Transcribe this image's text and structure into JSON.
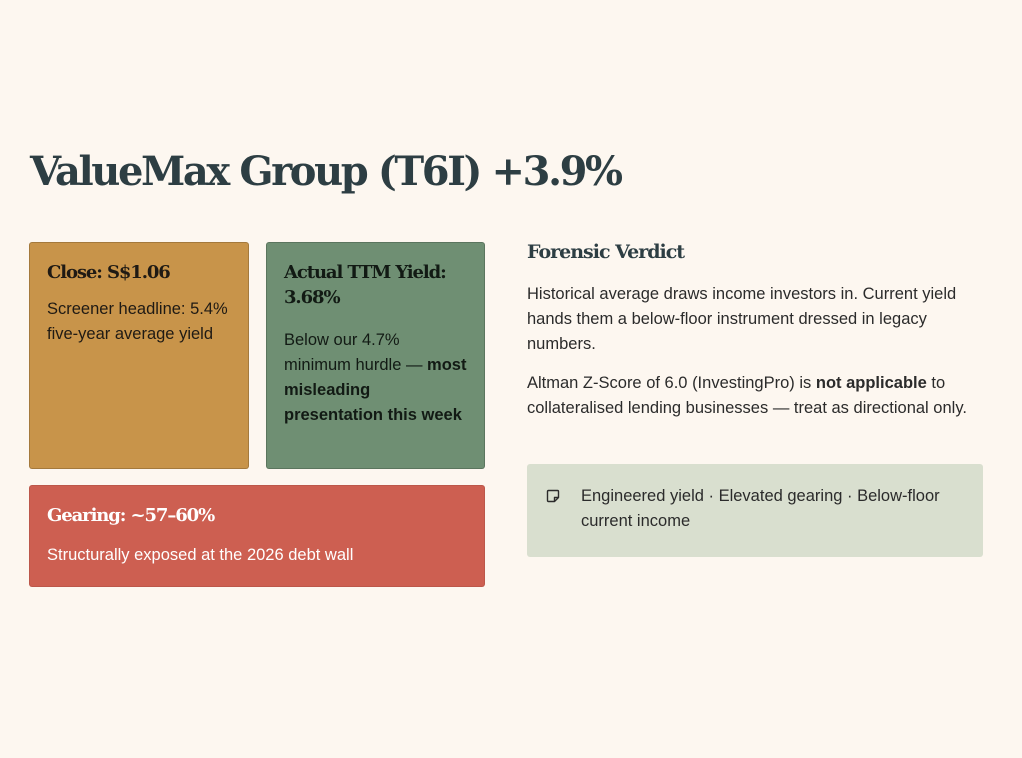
{
  "header": {
    "title": "ValueMax Group (T6I) +3.9%"
  },
  "cards": {
    "close": {
      "title": "Close: S$1.06",
      "body": "Screener headline: 5.4% five-year average yield",
      "color": "#c8944a"
    },
    "yield": {
      "title": "Actual TTM Yield: 3.68%",
      "body_prefix": "Below our 4.7% minimum hurdle — ",
      "body_bold": "most misleading presentation this week",
      "color": "#6f8f73"
    },
    "gearing": {
      "title": "Gearing: ~57–60%",
      "body": "Structurally exposed at the 2026 debt wall",
      "color": "#cd5f51"
    }
  },
  "verdict": {
    "title": "Forensic Verdict",
    "paragraph1": "Historical average draws income investors in. Current yield hands them a below-floor instrument dressed in legacy numbers.",
    "paragraph2_prefix": "Altman Z-Score of 6.0 (InvestingPro) is ",
    "paragraph2_bold": "not applicable",
    "paragraph2_suffix": " to collateralised lending businesses — treat as directional only.",
    "note": {
      "icon": "sticky-note-icon",
      "text": "Engineered yield · Elevated gearing · Below-floor current income"
    }
  }
}
